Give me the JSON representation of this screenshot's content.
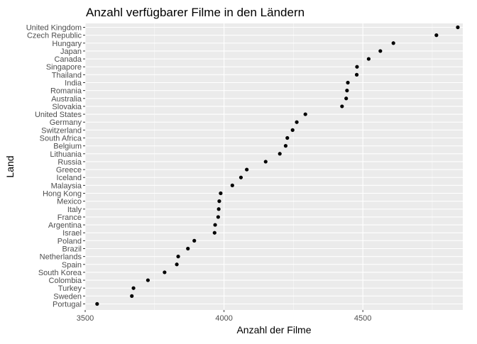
{
  "chart_data": {
    "type": "scatter",
    "title": "Anzahl verfügbarer Filme in den Ländern",
    "xlabel": "Anzahl der Filme",
    "ylabel": "Land",
    "xlim": [
      3500,
      4860
    ],
    "x_ticks": [
      3500,
      4000,
      4500
    ],
    "x_tick_labels": [
      "3500",
      "4000",
      "4500"
    ],
    "grid": true,
    "legend": "none",
    "panel_background": "#ebebeb",
    "grid_major_color": "#ffffff",
    "point_color": "#000000",
    "categories": [
      "Portugal",
      "Sweden",
      "Turkey",
      "Colombia",
      "South Korea",
      "Spain",
      "Netherlands",
      "Brazil",
      "Poland",
      "Israel",
      "Argentina",
      "France",
      "Italy",
      "Mexico",
      "Hong Kong",
      "Malaysia",
      "Iceland",
      "Greece",
      "Russia",
      "Lithuania",
      "Belgium",
      "South Africa",
      "Switzerland",
      "Germany",
      "United States",
      "Slovakia",
      "Australia",
      "Romania",
      "India",
      "Thailand",
      "Singapore",
      "Canada",
      "Japan",
      "Hungary",
      "Czech Republic",
      "United Kingdom"
    ],
    "values": [
      3543,
      3668,
      3674,
      3726,
      3786,
      3830,
      3835,
      3870,
      3893,
      3966,
      3968,
      3979,
      3981,
      3983,
      3988,
      4030,
      4061,
      4082,
      4150,
      4201,
      4222,
      4228,
      4247,
      4262,
      4293,
      4425,
      4440,
      4443,
      4446,
      4478,
      4479,
      4521,
      4563,
      4610,
      4765,
      4842
    ]
  }
}
